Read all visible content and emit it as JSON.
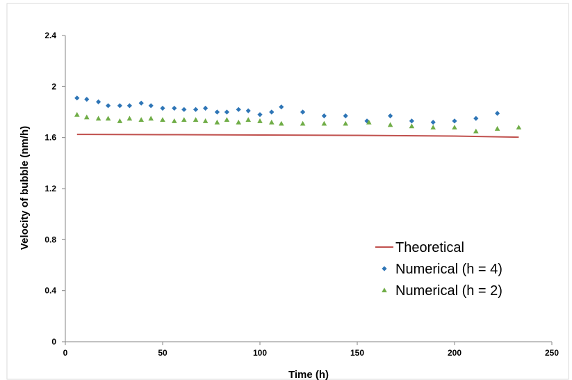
{
  "chart_data": {
    "type": "scatter",
    "xlabel": "Time (h)",
    "ylabel": "Velocity of bubble (nm/h)",
    "xlim": [
      0,
      250
    ],
    "ylim": [
      0,
      2.4
    ],
    "x_ticks": [
      "0",
      "50",
      "100",
      "150",
      "200",
      "250"
    ],
    "y_ticks": [
      "0",
      "0.4",
      "0.8",
      "1.2",
      "1.6",
      "2",
      "2.4"
    ],
    "grid": false,
    "legend_position": "bottom-right",
    "series": [
      {
        "name": "Theoretical",
        "kind": "line",
        "color": "#c0504d",
        "x": [
          6,
          50,
          100,
          150,
          200,
          233
        ],
        "y": [
          1.625,
          1.623,
          1.62,
          1.617,
          1.612,
          1.603
        ]
      },
      {
        "name": "Numerical (h = 4)",
        "kind": "marker-diamond",
        "color": "#2e75b6",
        "x": [
          6,
          11,
          17,
          22,
          28,
          33,
          39,
          44,
          50,
          56,
          61,
          67,
          72,
          78,
          83,
          89,
          94,
          100,
          106,
          111,
          122,
          133,
          144,
          155,
          167,
          178,
          189,
          200,
          211,
          222
        ],
        "y": [
          1.91,
          1.9,
          1.88,
          1.85,
          1.85,
          1.85,
          1.87,
          1.85,
          1.83,
          1.83,
          1.82,
          1.82,
          1.83,
          1.8,
          1.8,
          1.82,
          1.81,
          1.78,
          1.8,
          1.84,
          1.8,
          1.77,
          1.77,
          1.73,
          1.77,
          1.73,
          1.72,
          1.73,
          1.75,
          1.79
        ]
      },
      {
        "name": "Numerical (h = 2)",
        "kind": "marker-triangle",
        "color": "#70ad47",
        "x": [
          6,
          11,
          17,
          22,
          28,
          33,
          39,
          44,
          50,
          56,
          61,
          67,
          72,
          78,
          83,
          89,
          94,
          100,
          106,
          111,
          122,
          133,
          144,
          156,
          167,
          178,
          189,
          200,
          211,
          222,
          233
        ],
        "y": [
          1.78,
          1.76,
          1.75,
          1.75,
          1.73,
          1.75,
          1.74,
          1.75,
          1.74,
          1.73,
          1.74,
          1.74,
          1.73,
          1.72,
          1.74,
          1.72,
          1.74,
          1.73,
          1.72,
          1.71,
          1.71,
          1.71,
          1.71,
          1.72,
          1.7,
          1.69,
          1.68,
          1.68,
          1.65,
          1.67,
          1.68
        ]
      }
    ]
  }
}
